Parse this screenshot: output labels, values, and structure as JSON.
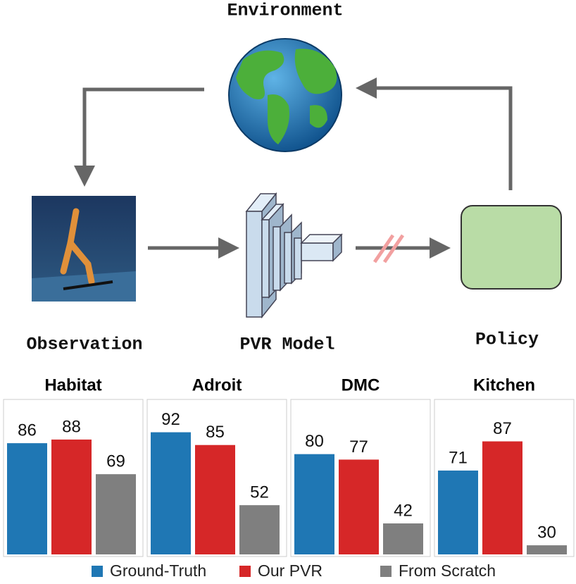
{
  "diagram": {
    "environment": "Environment",
    "observation": "Observation",
    "model": "PVR Model",
    "policy": "Policy"
  },
  "chart_data": [
    {
      "type": "bar",
      "title": "Habitat",
      "ylim": [
        25,
        110
      ],
      "series": [
        {
          "name": "Ground-Truth",
          "color": "#1f77b4",
          "values": [
            86
          ]
        },
        {
          "name": "Our PVR",
          "color": "#d62728",
          "values": [
            88
          ]
        },
        {
          "name": "From Scratch",
          "color": "#7f7f7f",
          "values": [
            69
          ]
        }
      ]
    },
    {
      "type": "bar",
      "title": "Adroit",
      "ylim": [
        25,
        110
      ],
      "series": [
        {
          "name": "Ground-Truth",
          "color": "#1f77b4",
          "values": [
            92
          ]
        },
        {
          "name": "Our PVR",
          "color": "#d62728",
          "values": [
            85
          ]
        },
        {
          "name": "From Scratch",
          "color": "#7f7f7f",
          "values": [
            52
          ]
        }
      ]
    },
    {
      "type": "bar",
      "title": "DMC",
      "ylim": [
        25,
        110
      ],
      "series": [
        {
          "name": "Ground-Truth",
          "color": "#1f77b4",
          "values": [
            80
          ]
        },
        {
          "name": "Our PVR",
          "color": "#d62728",
          "values": [
            77
          ]
        },
        {
          "name": "From Scratch",
          "color": "#7f7f7f",
          "values": [
            42
          ]
        }
      ]
    },
    {
      "type": "bar",
      "title": "Kitchen",
      "ylim": [
        25,
        110
      ],
      "series": [
        {
          "name": "Ground-Truth",
          "color": "#1f77b4",
          "values": [
            71
          ]
        },
        {
          "name": "Our PVR",
          "color": "#d62728",
          "values": [
            87
          ]
        },
        {
          "name": "From Scratch",
          "color": "#7f7f7f",
          "values": [
            30
          ]
        }
      ]
    }
  ]
}
